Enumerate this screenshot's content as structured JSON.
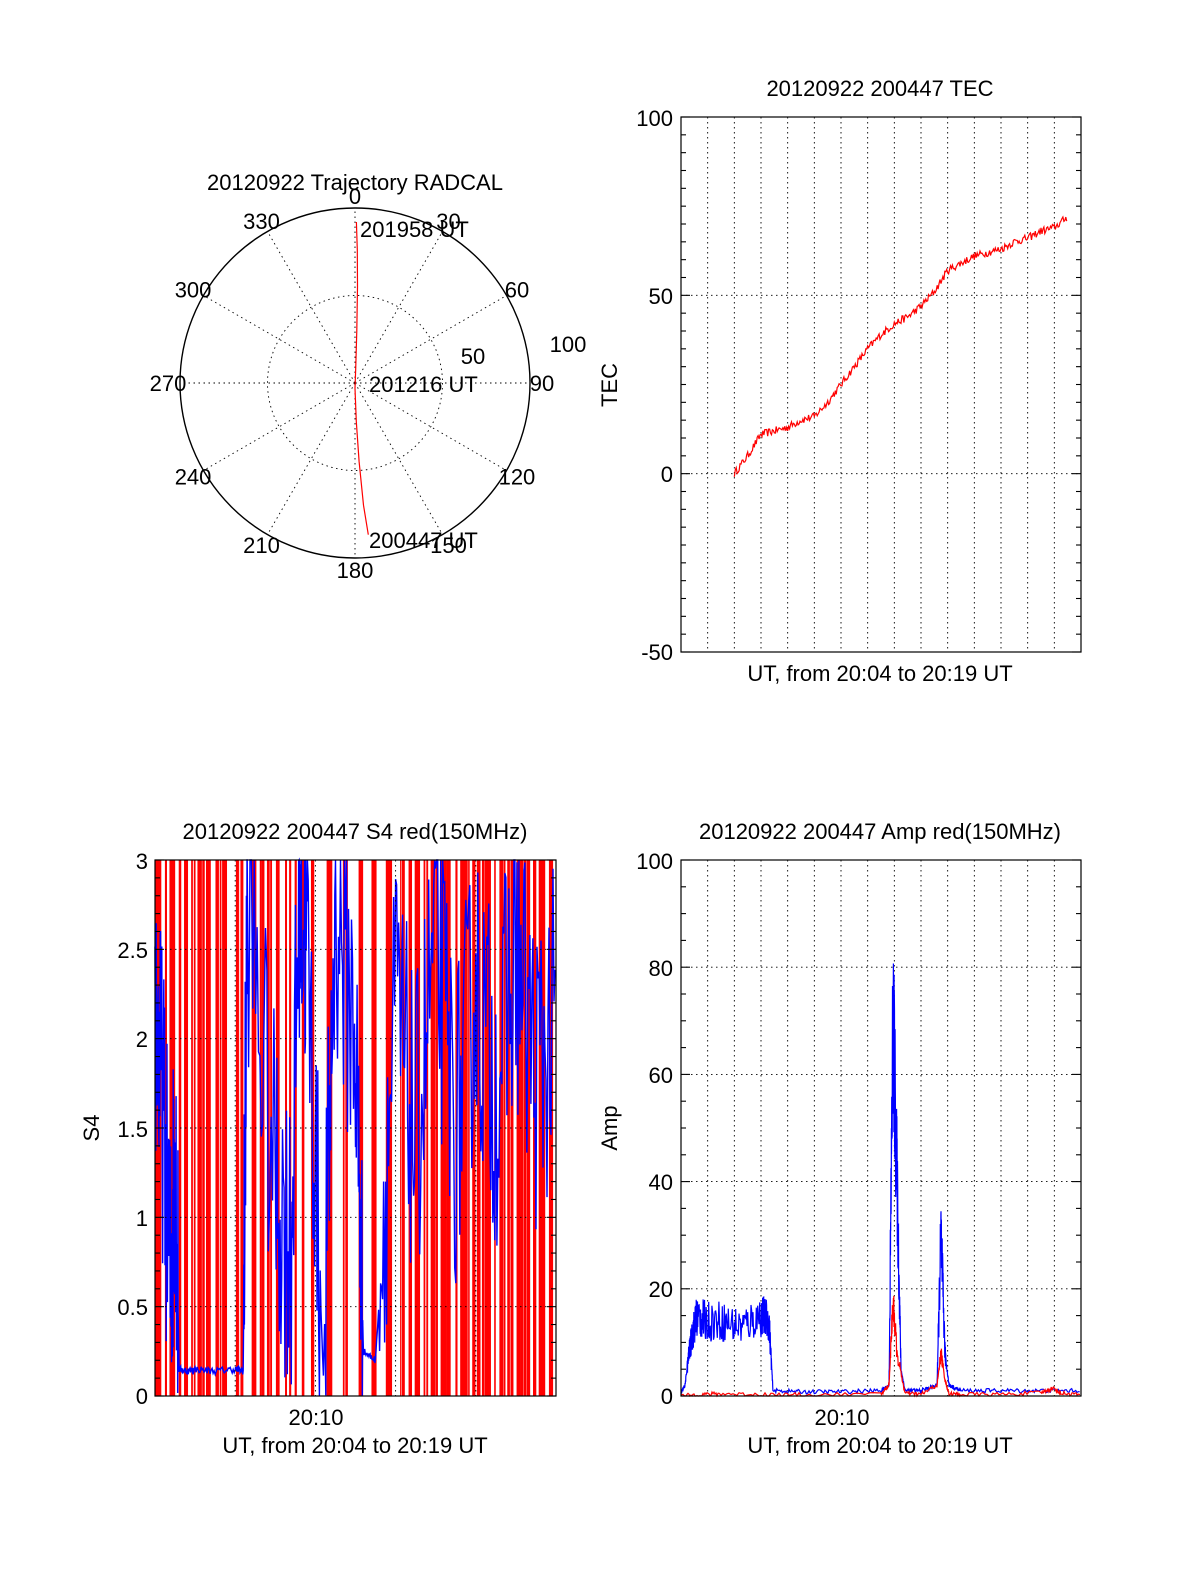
{
  "colors": {
    "red": "#ff0000",
    "blue": "#0000ff",
    "axis": "#000000",
    "background": "#ffffff"
  },
  "chart_data": [
    {
      "type": "polar",
      "title": "20120922 Trajectory RADCAL",
      "angle_labels": [
        "0",
        "30",
        "60",
        "90",
        "120",
        "150",
        "180",
        "210",
        "240",
        "270",
        "300",
        "330"
      ],
      "radius_labels": [
        "50",
        "100"
      ],
      "zenith_distance_max": 100,
      "grid": true,
      "annotations": [
        {
          "text": "201958 UT",
          "at": "start"
        },
        {
          "text": "201216 UT",
          "at": "zenith"
        },
        {
          "text": "200447 UT",
          "at": "end"
        }
      ],
      "series": [
        {
          "color": "#ff0000",
          "points": [
            [
              175,
              87
            ],
            [
              176,
              70
            ],
            [
              177,
              45
            ],
            [
              178,
              22
            ],
            [
              180,
              3
            ],
            [
              3,
              8
            ],
            [
              2,
              30
            ],
            [
              1.5,
              55
            ],
            [
              1,
              76
            ],
            [
              0.5,
              92
            ]
          ]
        }
      ]
    },
    {
      "type": "line",
      "title": "20120922 200447 TEC",
      "xlabel": "UT, from 20:04 to 20:19 UT",
      "ylabel": "TEC",
      "ylim": [
        -50,
        100
      ],
      "yticks": [
        "-50",
        "0",
        "50",
        "100"
      ],
      "xlim_minutes": [
        20.05,
        20.35
      ],
      "grid": true,
      "series": [
        {
          "color": "#ff0000",
          "x": [
            20.09,
            20.1,
            20.11,
            20.12,
            20.13,
            20.14,
            20.15,
            20.16,
            20.17,
            20.18,
            20.19,
            20.2,
            20.21,
            20.22,
            20.23,
            20.24,
            20.25,
            20.26,
            20.27,
            20.28,
            20.29,
            20.3,
            20.31,
            20.32,
            20.33,
            20.34
          ],
          "y": [
            0,
            5,
            11,
            12,
            13,
            15,
            16,
            20,
            25,
            30,
            35,
            39,
            42,
            44,
            47,
            51,
            57,
            59,
            61,
            62,
            63,
            65,
            66,
            68,
            69,
            72
          ]
        }
      ]
    },
    {
      "type": "line",
      "title": "20120922 200447 S4 red(150MHz)",
      "xlabel": "UT, from 20:04 to 20:19 UT",
      "ylabel": "S4",
      "ylim": [
        0,
        3
      ],
      "yticks": [
        "0",
        "0.5",
        "1",
        "1.5",
        "2",
        "2.5",
        "3"
      ],
      "xticks": [
        "20:10"
      ],
      "grid": true,
      "series": [
        {
          "color": "#ff0000",
          "note_style": "dense vertical spikes",
          "spikes_x_fraction": [
            0.01,
            0.03,
            0.05,
            0.07,
            0.1,
            0.12,
            0.14,
            0.16,
            0.18,
            0.2,
            0.22,
            0.24,
            0.26,
            0.28,
            0.3,
            0.33,
            0.36,
            0.4,
            0.44,
            0.48,
            0.52,
            0.55,
            0.58,
            0.61,
            0.64,
            0.66,
            0.68,
            0.7,
            0.72,
            0.74,
            0.76,
            0.78,
            0.8,
            0.82,
            0.84,
            0.86,
            0.88,
            0.9,
            0.92,
            0.94,
            0.96,
            0.98
          ]
        },
        {
          "color": "#0000ff",
          "x_fraction": [
            0.0,
            0.02,
            0.04,
            0.05,
            0.06,
            0.08,
            0.1,
            0.15,
            0.2,
            0.22,
            0.23,
            0.3,
            0.34,
            0.36,
            0.38,
            0.42,
            0.45,
            0.5,
            0.52,
            0.55,
            0.6,
            0.65,
            0.7,
            0.75,
            0.8,
            0.85,
            0.9,
            0.95,
            1.0
          ],
          "y": [
            2.2,
            1.6,
            0.6,
            1.5,
            0.15,
            0.14,
            0.15,
            0.14,
            0.15,
            0.14,
            2.8,
            1.2,
            0.85,
            2.9,
            2.5,
            0.12,
            2.8,
            2.0,
            0.25,
            0.2,
            2.2,
            1.4,
            2.6,
            1.5,
            2.3,
            1.7,
            2.5,
            1.8,
            2.1
          ]
        }
      ]
    },
    {
      "type": "line",
      "title": "20120922 200447 Amp red(150MHz)",
      "xlabel": "UT, from 20:04 to 20:19 UT",
      "ylabel": "Amp",
      "ylim": [
        0,
        100
      ],
      "yticks": [
        "0",
        "20",
        "40",
        "60",
        "80",
        "100"
      ],
      "xticks": [
        "20:10"
      ],
      "grid": true,
      "series": [
        {
          "color": "#0000ff",
          "x_fraction": [
            0.0,
            0.01,
            0.02,
            0.03,
            0.04,
            0.06,
            0.1,
            0.15,
            0.2,
            0.22,
            0.23,
            0.3,
            0.4,
            0.5,
            0.52,
            0.53,
            0.54,
            0.55,
            0.56,
            0.6,
            0.64,
            0.65,
            0.66,
            0.67,
            0.7,
            0.8,
            0.9,
            1.0
          ],
          "y": [
            0.5,
            2,
            8,
            12,
            15,
            14,
            14,
            13,
            15,
            14,
            1,
            0.8,
            0.8,
            1,
            2,
            71,
            40,
            5,
            1,
            1,
            2,
            30,
            8,
            2,
            1,
            1,
            1,
            1
          ]
        },
        {
          "color": "#ff0000",
          "x_fraction": [
            0.0,
            0.05,
            0.1,
            0.2,
            0.3,
            0.5,
            0.52,
            0.53,
            0.54,
            0.56,
            0.6,
            0.64,
            0.65,
            0.66,
            0.67,
            0.7,
            0.8,
            0.9,
            0.93,
            0.95,
            1.0
          ],
          "y": [
            0,
            0.3,
            0.4,
            0.3,
            0.2,
            0.3,
            2,
            18,
            8,
            0.5,
            0.3,
            2,
            8,
            3,
            0.4,
            0.3,
            0.3,
            0.6,
            1.5,
            0.5,
            0.3
          ]
        }
      ]
    }
  ]
}
